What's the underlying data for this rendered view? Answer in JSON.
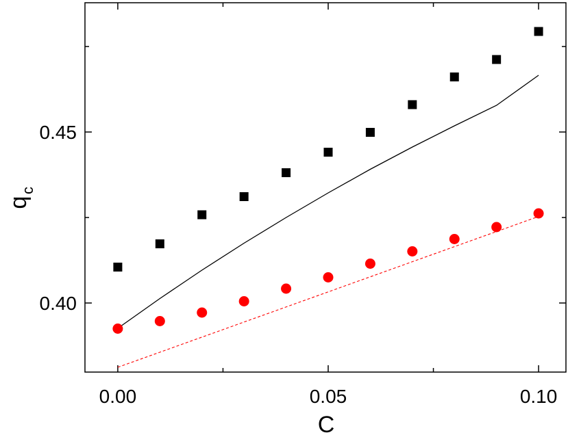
{
  "chart_data": {
    "type": "scatter",
    "xlabel": "C",
    "ylabel": "q",
    "ylabel_sub": "c",
    "xlim": [
      -0.0078,
      0.1065
    ],
    "ylim": [
      0.3798,
      0.4878
    ],
    "xticks": [
      0.0,
      0.05,
      0.1
    ],
    "xtick_labels": [
      "0.00",
      "0.05",
      "0.10"
    ],
    "xminor": [
      0.025,
      0.075
    ],
    "yticks": [
      0.4,
      0.45
    ],
    "ytick_labels": [
      "0.40",
      "0.45"
    ],
    "yminor": [
      0.425,
      0.475
    ],
    "grid": false,
    "series": [
      {
        "kind": "square-markers",
        "color": "#000000",
        "x": [
          0.0,
          0.01,
          0.02,
          0.03,
          0.04,
          0.05,
          0.06,
          0.07,
          0.08,
          0.09,
          0.1
        ],
        "y": [
          0.4105,
          0.4173,
          0.4258,
          0.4311,
          0.4381,
          0.4441,
          0.4499,
          0.458,
          0.4661,
          0.4712,
          0.4794
        ]
      },
      {
        "kind": "circle-markers",
        "color": "#ff0000",
        "x": [
          0.0,
          0.01,
          0.02,
          0.03,
          0.04,
          0.05,
          0.06,
          0.07,
          0.08,
          0.09,
          0.1
        ],
        "y": [
          0.3925,
          0.3947,
          0.3972,
          0.4005,
          0.4042,
          0.4075,
          0.4115,
          0.4151,
          0.4187,
          0.4222,
          0.4262
        ]
      },
      {
        "kind": "solid-line",
        "color": "#000000",
        "x": [
          0.0,
          0.01,
          0.02,
          0.03,
          0.04,
          0.05,
          0.06,
          0.07,
          0.08,
          0.09,
          0.1
        ],
        "y": [
          0.3926,
          0.4013,
          0.4096,
          0.4175,
          0.425,
          0.4322,
          0.4391,
          0.4456,
          0.4518,
          0.4578,
          0.4666
        ]
      },
      {
        "kind": "dashed-line",
        "color": "#ff0000",
        "x": [
          0.0,
          0.1
        ],
        "y": [
          0.3812,
          0.4253
        ]
      }
    ]
  }
}
